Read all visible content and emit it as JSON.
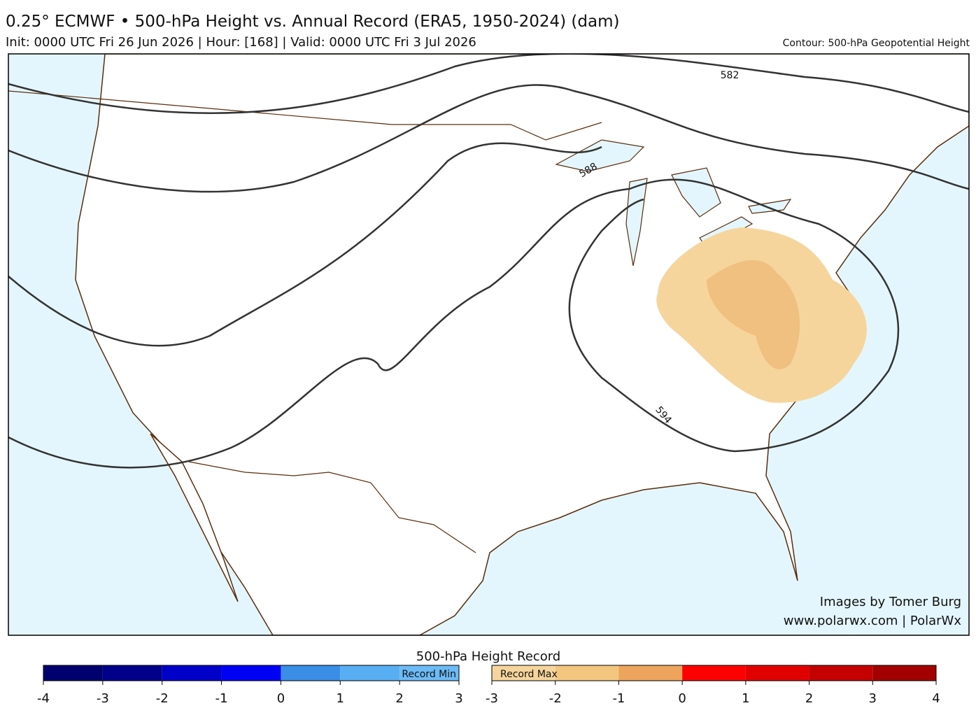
{
  "header": {
    "title": "0.25° ECMWF • 500-hPa Height vs. Annual Record (ERA5, 1950-2024) (dam)",
    "subtitle": "Init: 0000 UTC Fri 26 Jun 2026 | Hour: [168] | Valid: 0000 UTC Fri 3 Jul 2026",
    "contour_note": "Contour: 500-hPa Geopotential Height"
  },
  "map": {
    "contour_labels": [
      582,
      588,
      594
    ],
    "credits": [
      "Images by Tomer Burg",
      "www.polarwx.com | PolarWx"
    ]
  },
  "colorbar": {
    "title": "500-hPa Height Record",
    "left": {
      "label": "Record Min",
      "ticks": [
        -4,
        -3,
        -2,
        -1,
        0,
        1,
        2,
        3
      ],
      "colors": [
        "#00006e",
        "#00008a",
        "#0000c8",
        "#0000f5",
        "#3a8ee6",
        "#58aef2",
        "#6cbbf6"
      ]
    },
    "right": {
      "label": "Record Max",
      "ticks": [
        -3,
        -2,
        -1,
        0,
        1,
        2,
        3,
        4
      ],
      "colors": [
        "#f6d59c",
        "#f3c680",
        "#eda45c",
        "#ff0000",
        "#e00000",
        "#c40000",
        "#a20000"
      ]
    }
  }
}
